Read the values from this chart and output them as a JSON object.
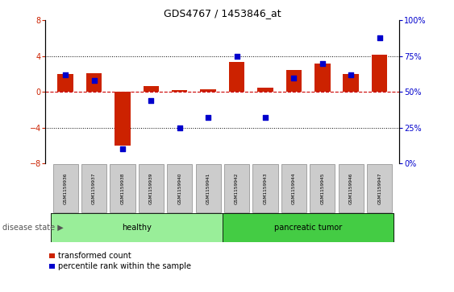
{
  "title": "GDS4767 / 1453846_at",
  "samples": [
    "GSM1159936",
    "GSM1159937",
    "GSM1159938",
    "GSM1159939",
    "GSM1159940",
    "GSM1159941",
    "GSM1159942",
    "GSM1159943",
    "GSM1159944",
    "GSM1159945",
    "GSM1159946",
    "GSM1159947"
  ],
  "red_values": [
    2.0,
    2.1,
    -6.0,
    0.7,
    0.2,
    0.3,
    3.4,
    0.5,
    2.5,
    3.2,
    2.0,
    4.2
  ],
  "blue_values": [
    62,
    58,
    10,
    44,
    25,
    32,
    75,
    32,
    60,
    70,
    62,
    88
  ],
  "healthy_count": 6,
  "ylim_left": [
    -8,
    8
  ],
  "ylim_right": [
    0,
    100
  ],
  "yticks_left": [
    -8,
    -4,
    0,
    4,
    8
  ],
  "yticks_right": [
    0,
    25,
    50,
    75,
    100
  ],
  "bar_color": "#cc2200",
  "dot_color": "#0000cc",
  "healthy_color": "#99ee99",
  "tumor_color": "#44cc44",
  "label_box_color": "#cccccc",
  "legend_red_label": "transformed count",
  "legend_blue_label": "percentile rank within the sample",
  "disease_state_label": "disease state",
  "healthy_label": "healthy",
  "tumor_label": "pancreatic tumor",
  "zero_line_color": "#cc0000",
  "dotted_line_color": "#000000",
  "bar_width": 0.55,
  "dot_size": 18
}
